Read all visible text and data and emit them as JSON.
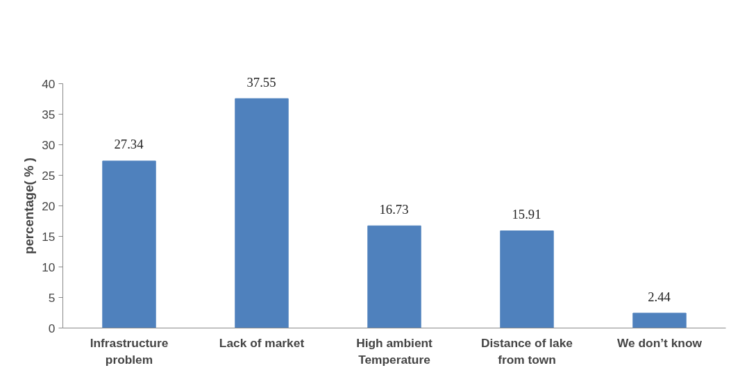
{
  "chart_data": {
    "type": "bar",
    "categories": [
      "Infrastructure\nproblem",
      "Lack of market",
      "High ambient\nTemperature",
      "Distance of lake\nfrom town",
      "We don’t know"
    ],
    "values": [
      27.34,
      37.55,
      16.73,
      15.91,
      2.44
    ],
    "color": "#4f81bd",
    "ylabel": "percentage( % )",
    "ylim": [
      0,
      40
    ],
    "yticks": [
      0,
      5,
      10,
      15,
      20,
      25,
      30,
      35,
      40
    ],
    "data_labels": true,
    "grid": false
  }
}
